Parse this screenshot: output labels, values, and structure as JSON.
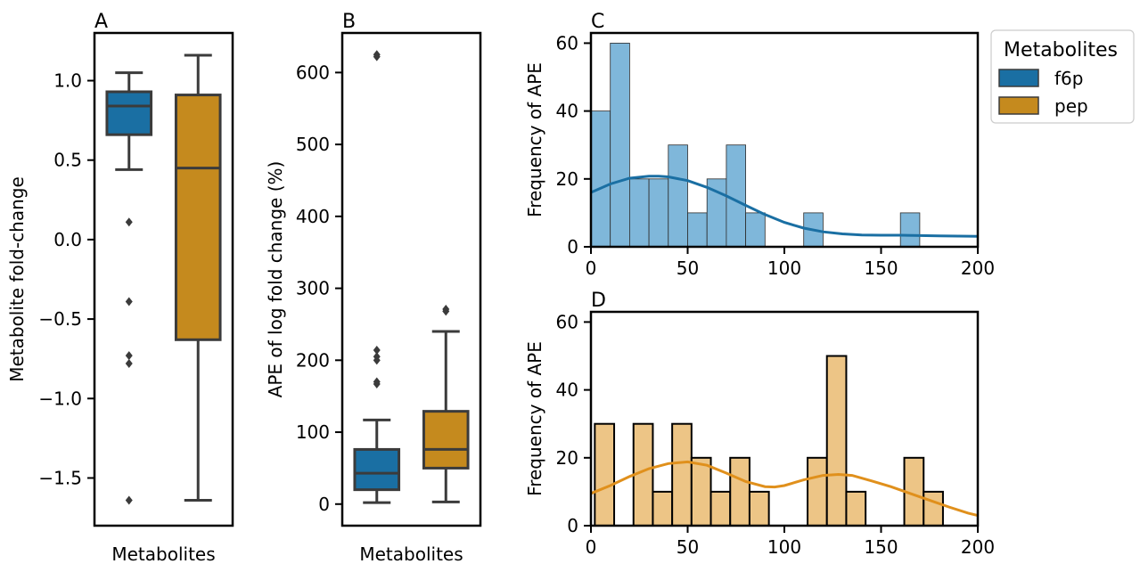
{
  "chart_data": [
    {
      "panel": "A",
      "type": "box",
      "title": "A",
      "xlabel": "Metabolites",
      "ylabel": "Metabolite fold-change",
      "ylim": [
        -1.8,
        1.3
      ],
      "yticks": [
        1.0,
        0.5,
        0.0,
        -0.5,
        -1.0,
        -1.5
      ],
      "ytick_labels": [
        "1.0",
        "0.5",
        "0.0",
        "−0.5",
        "−1.0",
        "−1.5"
      ],
      "series": [
        {
          "name": "f6p",
          "color": "#1a6fa3",
          "whisker_low": 0.44,
          "q1": 0.66,
          "median": 0.84,
          "q3": 0.93,
          "whisker_high": 1.05,
          "outliers": [
            0.11,
            -0.39,
            -0.73,
            -0.78,
            -1.64
          ]
        },
        {
          "name": "pep",
          "color": "#c58a1e",
          "whisker_low": -1.64,
          "q1": -0.63,
          "median": 0.45,
          "q3": 0.91,
          "whisker_high": 1.16,
          "outliers": []
        }
      ]
    },
    {
      "panel": "B",
      "type": "box",
      "title": "B",
      "xlabel": "Metabolites",
      "ylabel": "APE of log fold change (%)",
      "ylim": [
        -30,
        655
      ],
      "yticks": [
        600,
        500,
        400,
        300,
        200,
        100,
        0
      ],
      "ytick_labels": [
        "600",
        "500",
        "400",
        "300",
        "200",
        "100",
        "0"
      ],
      "series": [
        {
          "name": "f6p",
          "color": "#1a6fa3",
          "whisker_low": 2,
          "q1": 20,
          "median": 43,
          "q3": 76,
          "whisker_high": 117,
          "outliers": [
            625,
            622,
            214,
            205,
            200,
            170,
            167
          ]
        },
        {
          "name": "pep",
          "color": "#c58a1e",
          "whisker_low": 3,
          "q1": 50,
          "median": 76,
          "q3": 129,
          "whisker_high": 240,
          "outliers": [
            271,
            268
          ]
        }
      ]
    },
    {
      "panel": "C",
      "type": "histogram",
      "title": "C",
      "xlabel": "",
      "ylabel": "Frequency of APE",
      "xlim": [
        0,
        200
      ],
      "ylim": [
        0,
        63
      ],
      "xticks": [
        0,
        50,
        100,
        150,
        200
      ],
      "yticks": [
        0,
        20,
        40,
        60
      ],
      "series_name": "f6p",
      "color": "#1a6fa3",
      "fill": "#7fb7da",
      "bins": [
        {
          "x0": 0,
          "x1": 10,
          "count": 40
        },
        {
          "x0": 10,
          "x1": 20,
          "count": 60
        },
        {
          "x0": 20,
          "x1": 30,
          "count": 20
        },
        {
          "x0": 30,
          "x1": 40,
          "count": 20
        },
        {
          "x0": 40,
          "x1": 50,
          "count": 30
        },
        {
          "x0": 50,
          "x1": 60,
          "count": 10
        },
        {
          "x0": 60,
          "x1": 70,
          "count": 20
        },
        {
          "x0": 70,
          "x1": 80,
          "count": 30
        },
        {
          "x0": 80,
          "x1": 90,
          "count": 10
        },
        {
          "x0": 110,
          "x1": 120,
          "count": 10
        },
        {
          "x0": 160,
          "x1": 170,
          "count": 10
        }
      ],
      "kde": [
        [
          0,
          16
        ],
        [
          10,
          18.5
        ],
        [
          20,
          20.2
        ],
        [
          30,
          20.8
        ],
        [
          35,
          20.8
        ],
        [
          40,
          20.6
        ],
        [
          50,
          19.5
        ],
        [
          60,
          17.5
        ],
        [
          70,
          15
        ],
        [
          80,
          12.2
        ],
        [
          90,
          9.5
        ],
        [
          100,
          7.2
        ],
        [
          110,
          5.5
        ],
        [
          120,
          4.4
        ],
        [
          130,
          3.8
        ],
        [
          140,
          3.5
        ],
        [
          150,
          3.4
        ],
        [
          160,
          3.4
        ],
        [
          170,
          3.3
        ],
        [
          180,
          3.2
        ],
        [
          190,
          3.15
        ],
        [
          200,
          3.1
        ]
      ]
    },
    {
      "panel": "D",
      "type": "histogram",
      "title": "D",
      "xlabel": "",
      "ylabel": "Frequency of APE",
      "xlim": [
        0,
        200
      ],
      "ylim": [
        0,
        63
      ],
      "xticks": [
        0,
        50,
        100,
        150,
        200
      ],
      "yticks": [
        0,
        20,
        40,
        60
      ],
      "series_name": "pep",
      "color": "#e0901c",
      "fill": "#edc586",
      "bins": [
        {
          "x0": 2,
          "x1": 12,
          "count": 30
        },
        {
          "x0": 22,
          "x1": 32,
          "count": 30
        },
        {
          "x0": 32,
          "x1": 42,
          "count": 10
        },
        {
          "x0": 42,
          "x1": 52,
          "count": 30
        },
        {
          "x0": 52,
          "x1": 62,
          "count": 20
        },
        {
          "x0": 62,
          "x1": 72,
          "count": 10
        },
        {
          "x0": 72,
          "x1": 82,
          "count": 20
        },
        {
          "x0": 82,
          "x1": 92,
          "count": 10
        },
        {
          "x0": 112,
          "x1": 122,
          "count": 20
        },
        {
          "x0": 122,
          "x1": 132,
          "count": 50
        },
        {
          "x0": 132,
          "x1": 142,
          "count": 10
        },
        {
          "x0": 162,
          "x1": 172,
          "count": 20
        },
        {
          "x0": 172,
          "x1": 182,
          "count": 10
        }
      ],
      "kde": [
        [
          0,
          9.5
        ],
        [
          10,
          11.8
        ],
        [
          20,
          14.5
        ],
        [
          30,
          16.8
        ],
        [
          40,
          18.3
        ],
        [
          50,
          18.8
        ],
        [
          60,
          17.8
        ],
        [
          70,
          15.5
        ],
        [
          80,
          13
        ],
        [
          90,
          11.5
        ],
        [
          95,
          11.4
        ],
        [
          100,
          11.8
        ],
        [
          110,
          13.5
        ],
        [
          120,
          14.8
        ],
        [
          128,
          15.1
        ],
        [
          135,
          14.8
        ],
        [
          145,
          13.2
        ],
        [
          155,
          11.5
        ],
        [
          165,
          9.5
        ],
        [
          175,
          7.5
        ],
        [
          185,
          5.5
        ],
        [
          195,
          3.7
        ],
        [
          200,
          3
        ]
      ]
    }
  ],
  "legend": {
    "title": "Metabolites",
    "placement": "upper right, outside panel C",
    "items": [
      {
        "label": "f6p",
        "color": "#1a6fa3"
      },
      {
        "label": "pep",
        "color": "#c58a1e"
      }
    ]
  }
}
